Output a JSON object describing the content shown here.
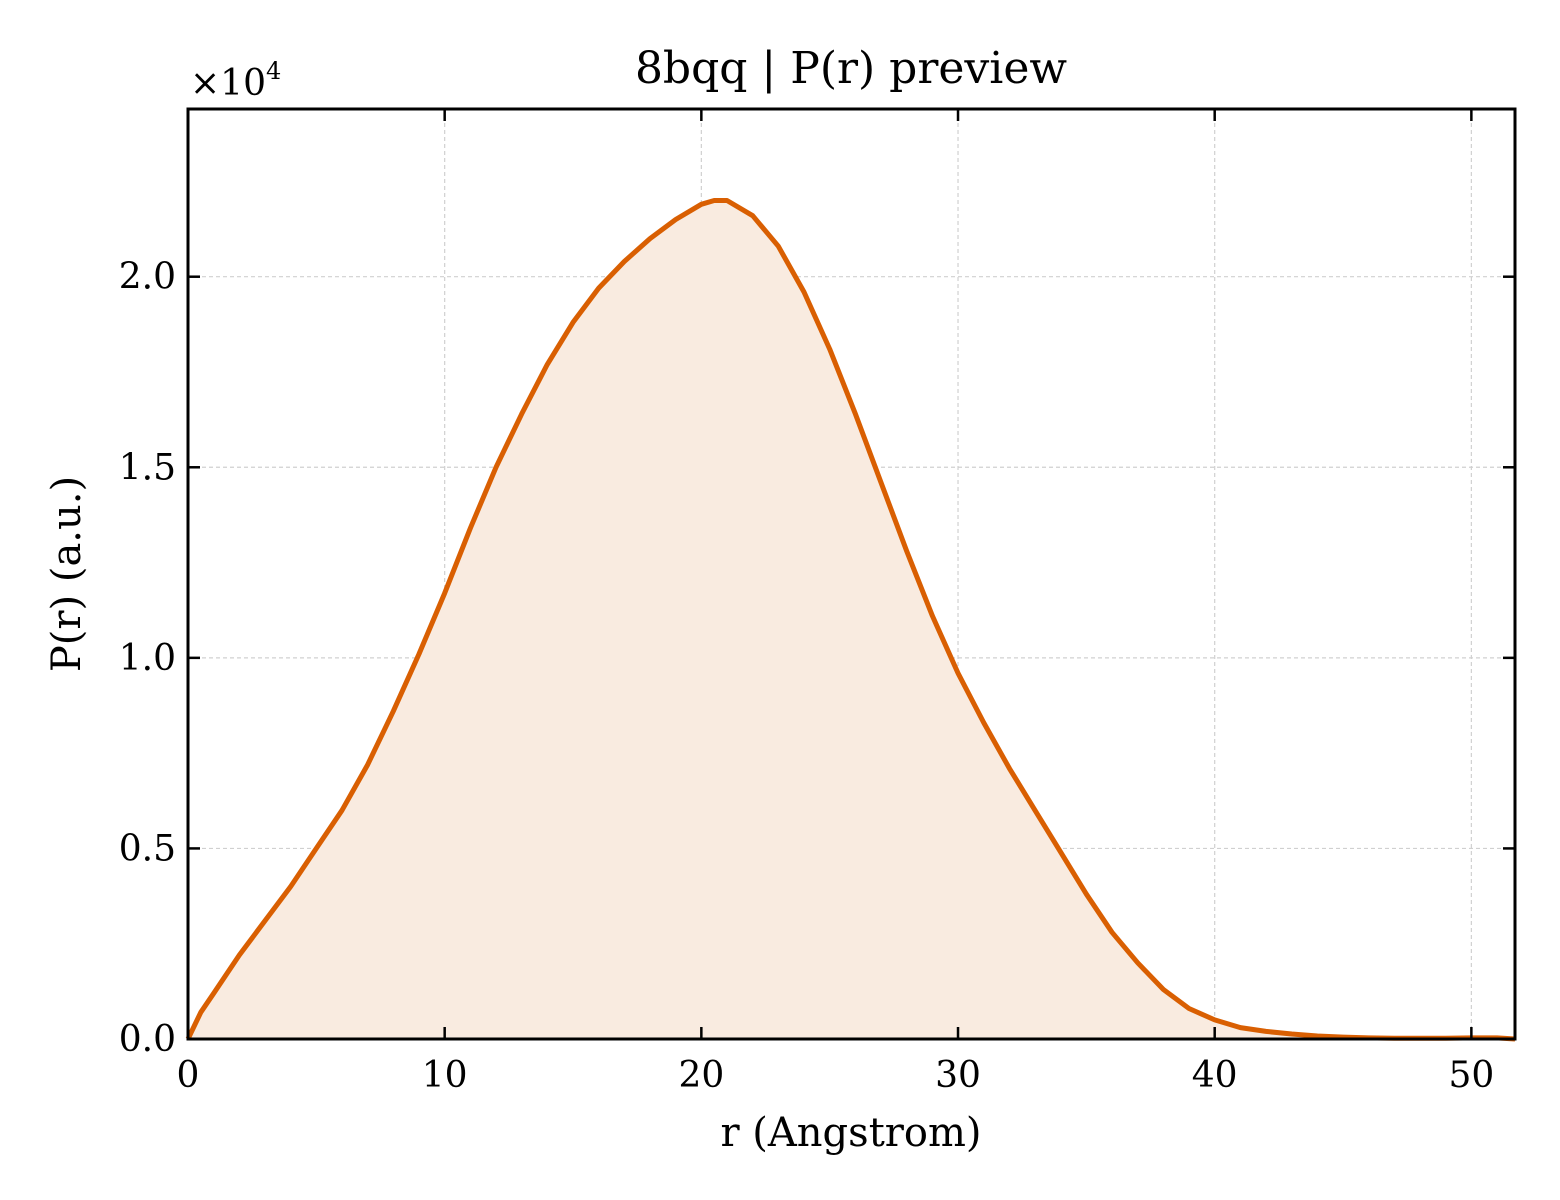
{
  "chart_data": {
    "type": "area",
    "title": "8bqq | P(r) preview",
    "xlabel": "r (Angstrom)",
    "ylabel": "P(r) (a.u.)",
    "y_multiplier_label": "×10",
    "y_multiplier_exponent": "4",
    "xlim": [
      0,
      51.7
    ],
    "ylim": [
      0,
      2.44
    ],
    "x_ticks": [
      0,
      10,
      20,
      30,
      40,
      50
    ],
    "x_tick_labels": [
      "0",
      "10",
      "20",
      "30",
      "40",
      "50"
    ],
    "y_ticks": [
      0.0,
      0.5,
      1.0,
      1.5,
      2.0
    ],
    "y_tick_labels": [
      "0.0",
      "0.5",
      "1.0",
      "1.5",
      "2.0"
    ],
    "grid": true,
    "line_color": "#d95f02",
    "fill_color": "#f9ebe0",
    "series": [
      {
        "x": [
          0,
          0.5,
          1,
          2,
          3,
          4,
          5,
          6,
          7,
          8,
          9,
          10,
          11,
          12,
          13,
          14,
          15,
          16,
          17,
          18,
          19,
          20,
          20.5,
          21,
          22,
          23,
          24,
          25,
          26,
          27,
          28,
          29,
          30,
          31,
          32,
          33,
          34,
          35,
          36,
          37,
          38,
          39,
          40,
          41,
          42,
          43,
          44,
          45,
          46,
          47,
          48,
          49,
          50,
          51,
          51.7
        ],
        "y": [
          0.0,
          0.07,
          0.12,
          0.22,
          0.31,
          0.4,
          0.5,
          0.6,
          0.72,
          0.86,
          1.01,
          1.17,
          1.34,
          1.5,
          1.64,
          1.77,
          1.88,
          1.97,
          2.04,
          2.1,
          2.15,
          2.19,
          2.2,
          2.2,
          2.16,
          2.08,
          1.96,
          1.81,
          1.64,
          1.46,
          1.28,
          1.11,
          0.96,
          0.83,
          0.71,
          0.6,
          0.49,
          0.38,
          0.28,
          0.2,
          0.13,
          0.08,
          0.05,
          0.03,
          0.02,
          0.013,
          0.008,
          0.005,
          0.003,
          0.002,
          0.002,
          0.002,
          0.003,
          0.003,
          0.0
        ]
      }
    ]
  }
}
